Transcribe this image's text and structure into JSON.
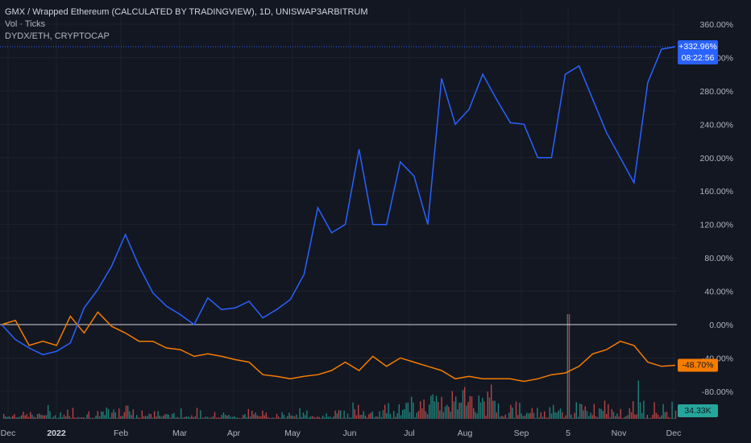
{
  "header": {
    "symbol_line": "GMX / Wrapped Ethereum (CALCULATED BY TRADINGVIEW), 1D, UNISWAP3ARBITRUM",
    "volume_line": "Vol · Ticks",
    "compare_line": "DYDX/ETH, CRYPTOCAP"
  },
  "colors": {
    "background": "#131722",
    "main_series": "#2962ff",
    "compare_series": "#f57c00",
    "volume_up": "#26a69a",
    "volume_down": "#ef5350",
    "zero_line": "#d1d4dc"
  },
  "chart_data": {
    "type": "line",
    "y_unit": "%",
    "ylim": [
      -96,
      372
    ],
    "y_ticks": [
      "360.00%",
      "320.00%",
      "280.00%",
      "240.00%",
      "200.00%",
      "160.00%",
      "120.00%",
      "80.00%",
      "40.00%",
      "0.00%",
      "-40.00%",
      "-80.00%"
    ],
    "x_ticks": [
      "Dec",
      "2022",
      "Feb",
      "Mar",
      "Apr",
      "May",
      "Jun",
      "Jul",
      "Aug",
      "Sep",
      "5",
      "Nov",
      "Dec"
    ],
    "x": [
      "Dec",
      "Dec",
      "Dec",
      "2022",
      "2022",
      "2022",
      "Feb",
      "Feb",
      "Feb",
      "Feb",
      "Feb",
      "Mar",
      "Mar",
      "Mar",
      "Apr",
      "Apr",
      "Apr",
      "May",
      "May",
      "May",
      "Jun",
      "Jun",
      "Jun",
      "Jul",
      "Jul",
      "Jul",
      "Jul",
      "Jul",
      "Aug",
      "Aug",
      "Aug",
      "Aug",
      "Aug",
      "Aug",
      "Sep",
      "Sep",
      "Sep",
      "Sep",
      "Sep",
      "Sep",
      "Sep",
      "Nov",
      "Nov",
      "Nov",
      "Nov",
      "Nov",
      "Nov",
      "Nov",
      "Nov",
      "Dec"
    ],
    "series": [
      {
        "name": "GMX / Wrapped Ethereum",
        "color": "#2962ff",
        "last_label": "+332.96%",
        "countdown": "08:22:56",
        "values": [
          0,
          -18,
          -28,
          -36,
          -32,
          -22,
          20,
          42,
          70,
          108,
          70,
          38,
          22,
          12,
          0,
          32,
          18,
          20,
          28,
          8,
          18,
          30,
          60,
          140,
          110,
          120,
          210,
          120,
          120,
          195,
          178,
          120,
          295,
          240,
          258,
          300,
          270,
          242,
          240,
          200,
          200,
          300,
          310,
          270,
          230,
          200,
          170,
          290,
          330,
          333
        ]
      },
      {
        "name": "DYDX/ETH",
        "color": "#f57c00",
        "last_label": "-48.70%",
        "values": [
          0,
          5,
          -25,
          -20,
          -25,
          10,
          -10,
          15,
          -2,
          -10,
          -20,
          -20,
          -28,
          -30,
          -38,
          -35,
          -38,
          -42,
          -45,
          -60,
          -62,
          -65,
          -62,
          -60,
          -55,
          -45,
          -55,
          -38,
          -50,
          -40,
          -45,
          -50,
          -55,
          -65,
          -62,
          -65,
          -65,
          -65,
          -68,
          -65,
          -60,
          -58,
          -50,
          -35,
          -30,
          -20,
          -25,
          -45,
          -50,
          -48.7
        ]
      }
    ],
    "volume": {
      "name": "Vol",
      "last_label": "34.33K"
    }
  }
}
